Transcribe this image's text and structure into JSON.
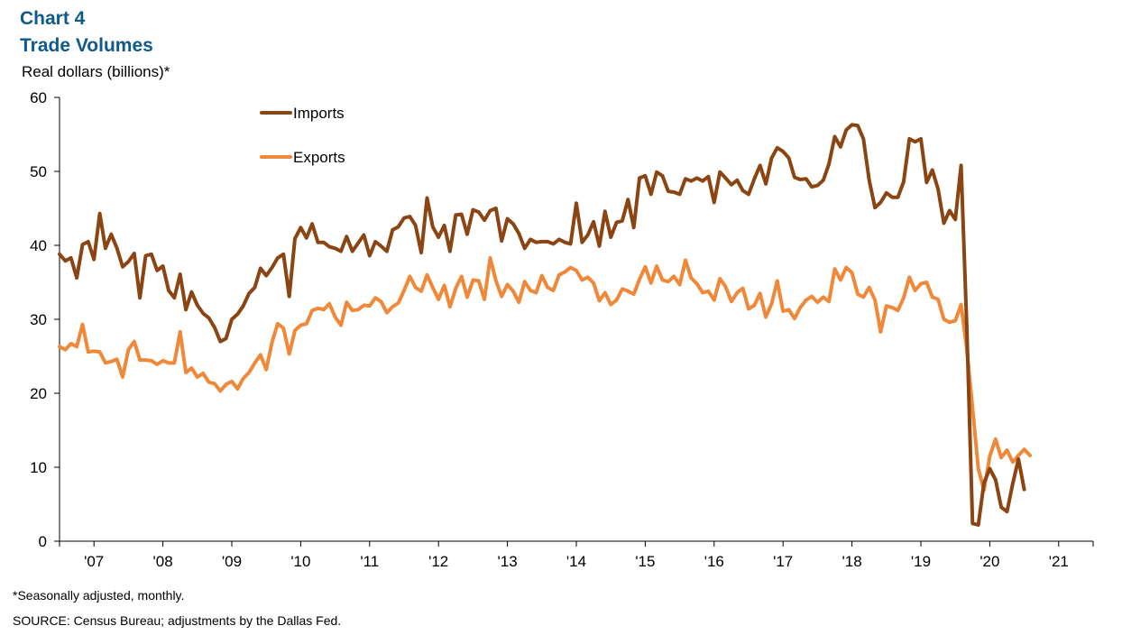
{
  "header": {
    "chart_number": "Chart 4",
    "title": "Trade Volumes",
    "ylabel": "Real dollars (billions)*"
  },
  "footer": {
    "note": "*Seasonally adjusted,  monthly.",
    "source": "SOURCE:  Census Bureau; adjustments  by the Dallas Fed."
  },
  "colors": {
    "imports": "#8b4513",
    "exports": "#f0883a",
    "title": "#0e5a8a",
    "axis": "#000000"
  },
  "chart_data": {
    "type": "line",
    "title": "Trade Volumes",
    "ylabel": "Real dollars (billions)*",
    "xlabel": "",
    "ylim": [
      0,
      60
    ],
    "yticks": [
      0,
      10,
      20,
      30,
      40,
      50,
      60
    ],
    "xlim": [
      2006.5,
      2021.5
    ],
    "xticks": [
      "'07",
      "'08",
      "'09",
      "'10",
      "'11",
      "'12",
      "'13",
      "'14",
      "'15",
      "'16",
      "'17",
      "'18",
      "'19",
      "'20",
      "'21"
    ],
    "grid": false,
    "legend": "top-left",
    "start": "2006-07",
    "frequency": "monthly",
    "series": [
      {
        "name": "Imports",
        "values": [
          38.8,
          37.9,
          38.3,
          35.6,
          40.1,
          40.5,
          38.1,
          44.3,
          39.6,
          41.5,
          39.6,
          37.1,
          37.8,
          38.9,
          32.9,
          38.6,
          38.8,
          36.6,
          37.2,
          33.9,
          32.9,
          36.1,
          31.3,
          33.7,
          31.9,
          30.8,
          30.2,
          28.9,
          27.0,
          27.4,
          30.0,
          30.7,
          31.8,
          33.5,
          34.3,
          36.9,
          35.9,
          37.0,
          38.3,
          38.8,
          33.1,
          40.9,
          42.4,
          41.0,
          42.9,
          40.4,
          40.4,
          39.8,
          39.6,
          39.2,
          41.2,
          39.2,
          40.3,
          41.4,
          38.6,
          40.5,
          39.9,
          39.2,
          42.1,
          42.5,
          43.7,
          43.9,
          42.7,
          39.0,
          46.4,
          42.5,
          41.1,
          42.7,
          39.2,
          44.1,
          44.2,
          41.5,
          44.8,
          44.5,
          43.4,
          44.7,
          45.0,
          40.6,
          43.6,
          42.9,
          41.6,
          39.6,
          40.8,
          40.4,
          40.5,
          40.5,
          40.2,
          40.8,
          40.4,
          40.2,
          45.7,
          40.4,
          41.4,
          43.2,
          39.9,
          44.6,
          41.1,
          43.1,
          43.3,
          46.2,
          42.4,
          49.1,
          49.4,
          46.9,
          49.9,
          49.4,
          47.3,
          47.2,
          46.9,
          49.0,
          48.7,
          49.1,
          48.7,
          49.3,
          45.8,
          49.9,
          49.1,
          48.2,
          48.8,
          47.4,
          46.9,
          49.0,
          50.8,
          48.3,
          51.8,
          53.2,
          52.7,
          51.8,
          49.2,
          48.9,
          49.0,
          47.9,
          48.1,
          48.8,
          51.0,
          54.7,
          53.3,
          55.6,
          56.3,
          56.2,
          54.4,
          48.8,
          45.1,
          45.8,
          47.1,
          46.5,
          46.5,
          48.6,
          54.4,
          54.0,
          54.4,
          48.5,
          50.2,
          47.6,
          43.0,
          44.7,
          43.5,
          50.8,
          29.0,
          2.4,
          2.2,
          7.9,
          9.8,
          8.3,
          4.6,
          4.0,
          7.8,
          11.1,
          7.0
        ]
      },
      {
        "name": "Exports",
        "values": [
          26.3,
          25.9,
          26.7,
          26.3,
          29.3,
          25.6,
          25.7,
          25.6,
          24.1,
          24.3,
          24.6,
          22.2,
          25.9,
          27.0,
          24.5,
          24.5,
          24.4,
          23.9,
          24.4,
          24.1,
          24.1,
          28.3,
          22.8,
          23.4,
          22.2,
          22.7,
          21.5,
          21.3,
          20.3,
          21.2,
          21.6,
          20.6,
          22.0,
          22.8,
          24.1,
          25.2,
          23.2,
          26.9,
          29.4,
          28.8,
          25.3,
          28.5,
          29.2,
          29.4,
          31.2,
          31.5,
          31.3,
          32.1,
          30.3,
          29.2,
          32.3,
          31.2,
          31.3,
          31.9,
          31.8,
          32.9,
          32.4,
          30.9,
          31.7,
          32.2,
          33.9,
          35.8,
          34.3,
          33.8,
          36.0,
          34.3,
          32.7,
          34.6,
          31.7,
          34.2,
          35.8,
          33.0,
          35.3,
          35.2,
          32.7,
          38.3,
          35.2,
          33.1,
          34.7,
          33.8,
          32.3,
          35.1,
          33.9,
          33.6,
          35.9,
          34.3,
          33.9,
          36.0,
          36.4,
          37.0,
          36.6,
          35.3,
          35.7,
          34.9,
          32.5,
          33.6,
          32.0,
          32.6,
          34.1,
          33.8,
          33.4,
          35.4,
          37.1,
          34.9,
          37.2,
          35.3,
          35.1,
          35.8,
          34.7,
          38.0,
          35.6,
          34.8,
          33.6,
          33.8,
          32.6,
          35.5,
          34.4,
          32.4,
          33.6,
          34.2,
          31.4,
          31.9,
          33.5,
          30.3,
          32.1,
          35.2,
          31.1,
          31.3,
          30.1,
          31.6,
          32.6,
          33.1,
          32.3,
          33.0,
          32.4,
          36.8,
          35.3,
          37.0,
          36.3,
          33.4,
          33.0,
          34.3,
          32.6,
          28.3,
          31.8,
          31.6,
          31.2,
          32.9,
          35.7,
          33.9,
          34.8,
          35.0,
          33.0,
          32.7,
          30.0,
          29.6,
          29.8,
          32.0,
          26.0,
          18.0,
          9.8,
          6.9,
          11.5,
          13.8,
          11.3,
          12.3,
          10.7,
          11.6,
          12.4,
          11.6
        ]
      }
    ]
  }
}
